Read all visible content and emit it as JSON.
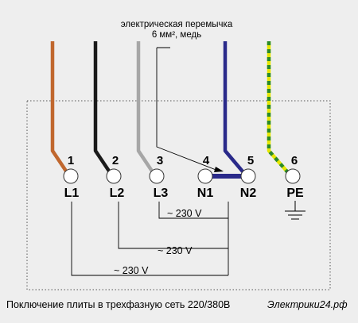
{
  "note_line1": "электрическая перемычка",
  "note_line2": "6 мм², медь",
  "terminals": [
    {
      "num": "1",
      "label": "L1"
    },
    {
      "num": "2",
      "label": "L2"
    },
    {
      "num": "3",
      "label": "L3"
    },
    {
      "num": "4",
      "label": "N1"
    },
    {
      "num": "5",
      "label": "N2"
    },
    {
      "num": "6",
      "label": "PE"
    }
  ],
  "voltages": [
    "~ 230 V",
    "~ 230 V",
    "~ 230 V"
  ],
  "caption": "Поключение плиты в трехфазную сеть 220/380В",
  "brand": "Электрики24.рф",
  "colors": {
    "wire_l1": "#c0672e",
    "wire_l2": "#1a1a1a",
    "wire_l3": "#a6a6a6",
    "wire_n": "#2a2a8a",
    "pe_yellow": "#e6e600",
    "pe_green": "#2a8a2a",
    "background": "#eeeeee"
  }
}
